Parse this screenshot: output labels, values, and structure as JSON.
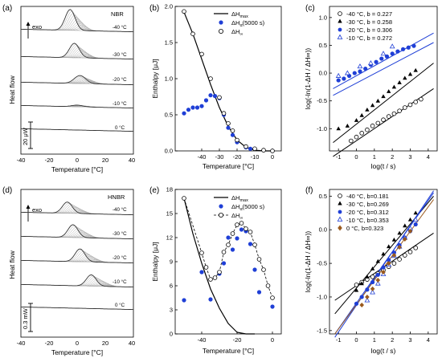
{
  "panels": {
    "a": {
      "label": "(a)",
      "material": "NBR",
      "exo": "exo",
      "xlabel": "Temperature [°C]",
      "ylabel": "Heat flow",
      "scalebar": "20 μW",
      "xticks": [
        "-40",
        "-20",
        "0",
        "20",
        "40"
      ],
      "curve_labels": [
        "-40 °C",
        "-30 °C",
        "-20 °C",
        "-10 °C",
        "0 °C"
      ]
    },
    "d": {
      "label": "(d)",
      "material": "HNBR",
      "exo": "exo",
      "xlabel": "Temperature [°C]",
      "ylabel": "Heat flow",
      "scalebar": "0.3 mW",
      "xticks": [
        "-40",
        "-20",
        "0",
        "20",
        "40"
      ],
      "curve_labels": [
        "-40 °C",
        "-30 °C",
        "-20 °C",
        "-10 °C",
        "0 °C"
      ]
    },
    "b": {
      "label": "(b)",
      "xlabel": "Temperature [°C]",
      "ylabel": "Enthalpy [μJ]",
      "legend": [
        "ΔH",
        "max",
        "ΔH",
        "α",
        "(5000 s)",
        "ΔH",
        "∞"
      ]
    },
    "e": {
      "label": "(e)",
      "xlabel": "Temperature [°C]",
      "ylabel": "Enthalpy [μJ]",
      "legend": [
        "ΔH",
        "max",
        "ΔH",
        "α",
        "(5000 s)",
        "ΔH",
        "∞"
      ]
    },
    "c": {
      "label": "(c)",
      "xlabel": "log(t / s)",
      "ylabel": "log(-ln(1-ΔH / ΔH∞))",
      "legend": [
        "-40 °C, b = 0.227",
        "-30 °C, b = 0.258",
        "-20 °C, b = 0.306",
        "-10 °C, b = 0.272"
      ]
    },
    "f": {
      "label": "(f)",
      "xlabel": "log(t / s)",
      "ylabel": "log(-ln(1-ΔH / ΔH∞))",
      "legend": [
        "-40 °C, b=0.181",
        "-30 °C, b=0.269",
        "-20 °C, b=0.312",
        "-10 °C, b=0.353",
        "0 °C, b=0.323"
      ]
    }
  },
  "colors": {
    "blue": "#1f3fd6",
    "brown": "#9a5a1e",
    "pink": "#f2a6c6"
  },
  "chart_data": [
    {
      "type": "line",
      "title": "(b)",
      "xlabel": "Temperature [°C]",
      "ylabel": "Enthalpy [μJ]",
      "xlim": [
        -55,
        5
      ],
      "ylim": [
        0,
        2.0
      ],
      "xticks": [
        -40,
        -30,
        -20,
        -10,
        0
      ],
      "yticks": [
        0.0,
        0.5,
        1.0,
        1.5,
        2.0
      ],
      "series": [
        {
          "name": "ΔHmax",
          "style": "line",
          "x": [
            -50,
            -45,
            -40,
            -35,
            -30,
            -25,
            -20,
            -15,
            -10,
            -5,
            0
          ],
          "y": [
            1.92,
            1.62,
            1.27,
            0.92,
            0.6,
            0.34,
            0.15,
            0.05,
            0.01,
            0.0,
            0.0
          ]
        },
        {
          "name": "ΔHα(5000 s)",
          "style": "filled-blue",
          "x": [
            -50,
            -47.5,
            -45,
            -42.5,
            -40,
            -37.5,
            -35,
            -32.5,
            -30,
            -27.5,
            -25,
            -22.5,
            -20,
            -15,
            -12.5,
            0
          ],
          "y": [
            0.52,
            0.57,
            0.6,
            0.6,
            0.62,
            0.7,
            0.77,
            0.76,
            0.73,
            0.5,
            0.32,
            0.22,
            0.12,
            0.05,
            0.03,
            0.0
          ]
        },
        {
          "name": "ΔH∞",
          "style": "open",
          "x": [
            -50,
            -45,
            -40,
            -35,
            -30,
            -27.5,
            -25,
            -22.5,
            -20,
            -15,
            -10,
            -5,
            0
          ],
          "y": [
            1.93,
            1.62,
            1.34,
            1.0,
            0.74,
            0.52,
            0.38,
            0.28,
            0.15,
            0.06,
            0.03,
            0.01,
            0.0
          ]
        }
      ]
    },
    {
      "type": "scatter",
      "title": "(c)",
      "xlabel": "log(t / s)",
      "ylabel": "log(-ln(1-ΔH / ΔH∞))",
      "xlim": [
        -1.5,
        4.5
      ],
      "ylim": [
        -1.4,
        1.2
      ],
      "xticks": [
        -1,
        0,
        1,
        2,
        3,
        4
      ],
      "yticks": [
        -1.0,
        -0.5,
        0.0,
        0.5,
        1.0
      ],
      "series": [
        {
          "name": "-40 °C, b = 0.227",
          "marker": "open-circle",
          "x": [
            -0.3,
            0.0,
            0.3,
            0.6,
            0.9,
            1.2,
            1.5,
            1.8,
            2.1,
            2.4,
            2.7,
            3.0,
            3.3,
            3.6
          ],
          "y": [
            -1.22,
            -1.15,
            -1.08,
            -1.02,
            -0.95,
            -0.9,
            -0.84,
            -0.78,
            -0.73,
            -0.68,
            -0.62,
            -0.57,
            -0.52,
            -0.47
          ],
          "fit": [
            [
              -1.3,
              -1.5
            ],
            [
              4.3,
              -0.28
            ]
          ]
        },
        {
          "name": "-30 °C, b = 0.258",
          "marker": "filled-triangle",
          "x": [
            -1.0,
            -0.5,
            0.0,
            0.3,
            0.6,
            0.9,
            1.2,
            1.5,
            1.8,
            2.1,
            2.4,
            2.7,
            3.0,
            3.3
          ],
          "y": [
            -1.0,
            -0.95,
            -0.85,
            -0.76,
            -0.66,
            -0.58,
            -0.5,
            -0.42,
            -0.33,
            -0.25,
            -0.17,
            -0.09,
            -0.02,
            0.05
          ],
          "fit": [
            [
              -1.3,
              -1.25
            ],
            [
              4.3,
              0.18
            ]
          ]
        },
        {
          "name": "-20 °C, b = 0.306",
          "marker": "filled-circle",
          "x": [
            -1.0,
            -0.7,
            -0.4,
            -0.1,
            0.2,
            0.5,
            0.8,
            1.1,
            1.4,
            1.7,
            2.0,
            2.3,
            2.6,
            2.9,
            3.2
          ],
          "y": [
            -0.13,
            -0.1,
            -0.05,
            0.0,
            0.03,
            0.08,
            0.15,
            0.2,
            0.26,
            0.3,
            0.35,
            0.39,
            0.43,
            0.46,
            0.49
          ],
          "fit": [
            [
              -1.3,
              -0.4
            ],
            [
              4.3,
              0.55
            ]
          ]
        },
        {
          "name": "-10 °C, b = 0.272",
          "marker": "open-triangle",
          "x": [
            -1.0,
            -0.5,
            0.2,
            0.8,
            1.5,
            2.0
          ],
          "y": [
            -0.05,
            0.0,
            0.12,
            0.18,
            0.35,
            0.48
          ],
          "fit": [
            [
              -1.3,
              -0.28
            ],
            [
              4.3,
              0.72
            ]
          ]
        }
      ]
    },
    {
      "type": "line",
      "title": "(e)",
      "xlabel": "Temperature [°C]",
      "ylabel": "Enthalpy [μJ]",
      "xlim": [
        -55,
        5
      ],
      "ylim": [
        0,
        18
      ],
      "xticks": [
        -40,
        -20,
        0
      ],
      "yticks": [
        0,
        3,
        6,
        9,
        12,
        15,
        18
      ],
      "series": [
        {
          "name": "ΔHmax",
          "style": "line",
          "x": [
            -50,
            -45,
            -40,
            -35,
            -30,
            -25,
            -20,
            -15,
            -10
          ],
          "y": [
            16.9,
            12.5,
            8.8,
            5.6,
            3.2,
            1.3,
            0.2,
            0.0,
            0.0
          ]
        },
        {
          "name": "ΔHα(5000 s)",
          "style": "filled-blue",
          "x": [
            -50,
            -40,
            -35,
            -30,
            -27.5,
            -25,
            -22.5,
            -20,
            -17.5,
            -15,
            -12.5,
            -10,
            -7.5,
            0
          ],
          "y": [
            4.2,
            7.7,
            4.3,
            7.5,
            8.8,
            12.0,
            10.5,
            11.9,
            13.0,
            12.8,
            11.2,
            8.0,
            5.2,
            3.4
          ]
        },
        {
          "name": "ΔH∞",
          "style": "open-dashed",
          "x": [
            -50,
            -40,
            -37.5,
            -35,
            -32.5,
            -30,
            -27.5,
            -25,
            -22.5,
            -20,
            -17.5,
            -15,
            -12.5,
            -10,
            -7.5,
            -5,
            -2.5,
            0
          ],
          "y": [
            16.9,
            10.1,
            8.3,
            6.8,
            7.0,
            7.7,
            10.2,
            11.1,
            12.5,
            13.6,
            13.8,
            13.1,
            12.7,
            11.1,
            9.3,
            8.0,
            6.0,
            4.5
          ]
        }
      ]
    },
    {
      "type": "scatter",
      "title": "(f)",
      "xlabel": "log(t / s)",
      "ylabel": "log(-ln(1-ΔH / ΔH∞))",
      "xlim": [
        -1.5,
        4.5
      ],
      "ylim": [
        -1.55,
        0.6
      ],
      "xticks": [
        -1,
        0,
        1,
        2,
        3,
        4
      ],
      "yticks": [
        -1.5,
        -1.0,
        -0.5,
        0.0,
        0.5
      ],
      "series": [
        {
          "name": "-40 °C, b=0.181",
          "marker": "open-circle",
          "x": [
            0.0,
            0.3,
            0.6,
            0.9,
            1.2,
            1.5,
            1.8,
            2.1,
            2.4,
            2.7,
            3.0,
            3.3
          ],
          "y": [
            -0.82,
            -0.78,
            -0.74,
            -0.7,
            -0.65,
            -0.6,
            -0.55,
            -0.5,
            -0.44,
            -0.38,
            -0.33,
            -0.27
          ],
          "fit": [
            [
              -1.2,
              -1.05
            ],
            [
              4.3,
              -0.05
            ]
          ]
        },
        {
          "name": "-30 °C, b=0.269",
          "marker": "filled-triangle",
          "x": [
            0.0,
            0.3,
            0.6,
            0.9,
            1.2,
            1.5,
            1.8,
            2.1,
            2.4,
            2.7,
            3.0,
            3.3
          ],
          "y": [
            -0.9,
            -0.8,
            -0.7,
            -0.58,
            -0.47,
            -0.36,
            -0.25,
            -0.15,
            -0.05,
            0.06,
            0.15,
            0.25
          ],
          "fit": [
            [
              -1.2,
              -1.25
            ],
            [
              4.3,
              0.5
            ]
          ]
        },
        {
          "name": "-20 °C, b=0.312",
          "marker": "filled-circle",
          "x": [
            0.0,
            0.3,
            0.6,
            0.9,
            1.2,
            1.5,
            1.8,
            2.1,
            2.4,
            2.7,
            3.0,
            3.3
          ],
          "y": [
            -1.1,
            -1.0,
            -0.89,
            -0.78,
            -0.67,
            -0.56,
            -0.45,
            -0.34,
            -0.23,
            -0.12,
            -0.02,
            0.08
          ],
          "fit": [
            [
              -1.2,
              -1.55
            ],
            [
              4.3,
              0.55
            ]
          ]
        },
        {
          "name": "-10 °C, b=0.353",
          "marker": "open-triangle",
          "x": [
            0.6,
            0.9,
            1.2,
            1.5,
            1.8,
            2.1,
            2.4,
            2.7,
            3.0,
            3.3
          ],
          "y": [
            -1.05,
            -0.93,
            -0.8,
            -0.66,
            -0.52,
            -0.39,
            -0.25,
            -0.12,
            0.02,
            0.15
          ],
          "fit": [
            [
              -1.2,
              -1.6
            ],
            [
              4.3,
              0.58
            ]
          ]
        },
        {
          "name": "0 °C, b=0.323",
          "marker": "filled-diamond",
          "x": [
            0.3,
            0.6,
            0.9,
            1.2,
            1.5,
            1.8,
            2.1,
            2.4,
            2.7,
            3.0
          ],
          "y": [
            -1.12,
            -1.0,
            -0.88,
            -0.75,
            -0.63,
            -0.5,
            -0.38,
            -0.26,
            -0.14,
            -0.02
          ],
          "fit": [
            [
              -1.2,
              -1.55
            ],
            [
              4.3,
              0.45
            ]
          ]
        }
      ]
    }
  ]
}
